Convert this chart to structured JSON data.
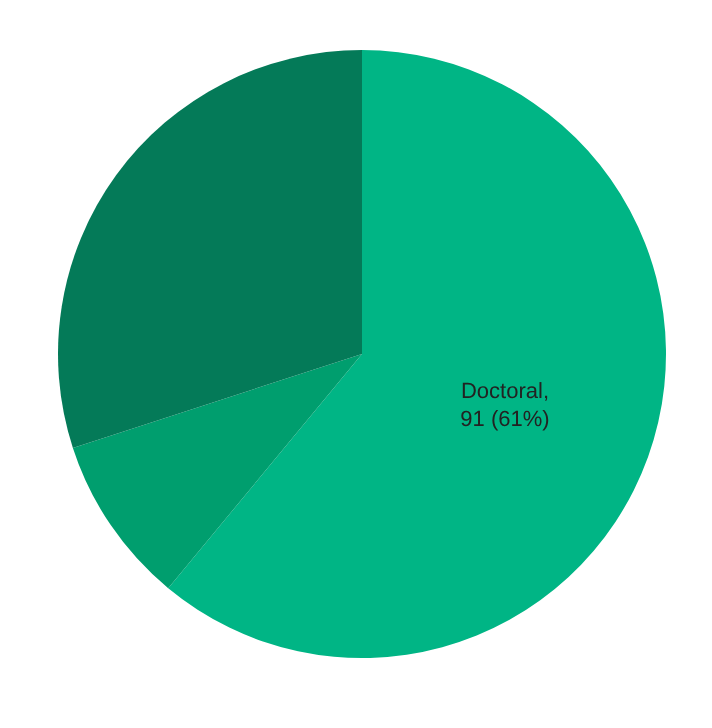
{
  "chart_data": {
    "type": "pie",
    "categories": [
      null,
      null,
      null
    ],
    "values": [
      61,
      9,
      30
    ],
    "colors": [
      "#00b585",
      "#009e6e",
      "#047a58"
    ],
    "value_labels": [
      "Doctoral, 91 (61%)",
      null,
      null
    ]
  }
}
